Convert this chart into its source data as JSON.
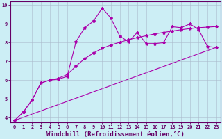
{
  "line1_x": [
    0,
    1,
    2,
    3,
    4,
    5,
    6,
    7,
    8,
    9,
    10,
    11,
    12,
    13,
    14,
    15,
    16,
    17,
    18,
    19,
    20,
    21,
    22,
    23
  ],
  "line1_y": [
    3.85,
    4.3,
    4.95,
    5.85,
    6.0,
    6.05,
    6.2,
    8.05,
    8.8,
    9.15,
    9.85,
    9.3,
    8.35,
    8.05,
    8.55,
    7.95,
    7.95,
    8.0,
    8.85,
    8.8,
    9.0,
    8.7,
    7.8,
    7.75
  ],
  "line2_x": [
    0,
    1,
    2,
    3,
    4,
    5,
    6,
    7,
    8,
    9,
    10,
    11,
    12,
    13,
    14,
    15,
    16,
    17,
    18,
    19,
    20,
    21,
    22,
    23
  ],
  "line2_y": [
    3.85,
    4.3,
    4.95,
    5.85,
    6.0,
    6.1,
    6.3,
    6.75,
    7.15,
    7.45,
    7.7,
    7.88,
    8.02,
    8.16,
    8.27,
    8.37,
    8.47,
    8.55,
    8.62,
    8.69,
    8.75,
    8.8,
    8.83,
    8.86
  ],
  "line3_x": [
    0,
    23
  ],
  "line3_y": [
    3.85,
    7.75
  ],
  "xlim": [
    -0.5,
    23.5
  ],
  "ylim": [
    3.75,
    10.2
  ],
  "yticks": [
    4,
    5,
    6,
    7,
    8,
    9,
    10
  ],
  "xticks": [
    0,
    1,
    2,
    3,
    4,
    5,
    6,
    7,
    8,
    9,
    10,
    11,
    12,
    13,
    14,
    15,
    16,
    17,
    18,
    19,
    20,
    21,
    22,
    23
  ],
  "xlabel": "Windchill (Refroidissement éolien,°C)",
  "bg_color": "#cceef5",
  "line_color": "#aa00aa",
  "grid_color": "#aabbcc",
  "axis_color": "#660066",
  "tick_fontsize": 5.0,
  "label_fontsize": 6.5,
  "marker": "*",
  "marker_size": 3.0,
  "line_width": 0.8
}
